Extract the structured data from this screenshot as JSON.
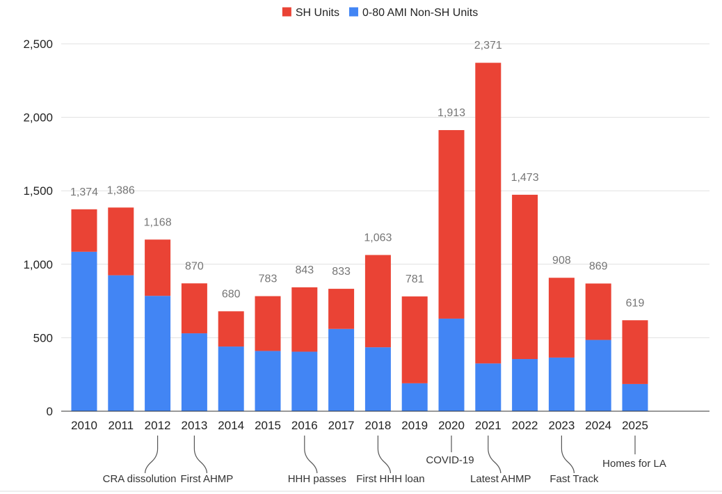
{
  "chart_data": {
    "type": "bar",
    "stacked": true,
    "title": "",
    "xlabel": "",
    "ylabel": "",
    "legend_position": "top",
    "grid": true,
    "ylim": [
      0,
      2500
    ],
    "y_ticks": [
      "0",
      "500",
      "1,000",
      "1,500",
      "2,000",
      "2,500"
    ],
    "y_tick_values": [
      0,
      500,
      1000,
      1500,
      2000,
      2500
    ],
    "categories": [
      "2010",
      "2011",
      "2012",
      "2013",
      "2014",
      "2015",
      "2016",
      "2017",
      "2018",
      "2019",
      "2020",
      "2021",
      "2022",
      "2023",
      "2024",
      "2025"
    ],
    "series": [
      {
        "name": "0-80 AMI Non-SH Units",
        "color": "#4285f4",
        "values": [
          1085,
          925,
          785,
          530,
          440,
          410,
          405,
          560,
          435,
          190,
          630,
          325,
          355,
          365,
          485,
          185
        ]
      },
      {
        "name": "SH Units",
        "color": "#ea4335",
        "values": [
          289,
          461,
          383,
          340,
          240,
          373,
          438,
          273,
          628,
          591,
          1283,
          2046,
          1118,
          543,
          384,
          434
        ]
      }
    ],
    "totals": [
      "1,374",
      "1,386",
      "1,168",
      "870",
      "680",
      "783",
      "843",
      "833",
      "1,063",
      "781",
      "1,913",
      "2,371",
      "1,473",
      "908",
      "869",
      "619"
    ],
    "legend": [
      {
        "label": "SH Units",
        "color": "#ea4335"
      },
      {
        "label": "0-80 AMI Non-SH Units",
        "color": "#4285f4"
      }
    ],
    "annotations": [
      {
        "category": "2012",
        "text": "CRA dissolution",
        "style": "curve-left"
      },
      {
        "category": "2013",
        "text": "First AHMP",
        "style": "curve-right"
      },
      {
        "category": "2016",
        "text": "HHH passes",
        "style": "curve-right"
      },
      {
        "category": "2018",
        "text": "First HHH loan",
        "style": "curve-right"
      },
      {
        "category": "2020",
        "text": "COVID-19",
        "style": "straight-short"
      },
      {
        "category": "2021",
        "text": "Latest AHMP",
        "style": "curve-right"
      },
      {
        "category": "2023",
        "text": "Fast Track",
        "style": "curve-right"
      },
      {
        "category": "2025",
        "text": "Homes for LA",
        "style": "straight-medium"
      }
    ]
  }
}
